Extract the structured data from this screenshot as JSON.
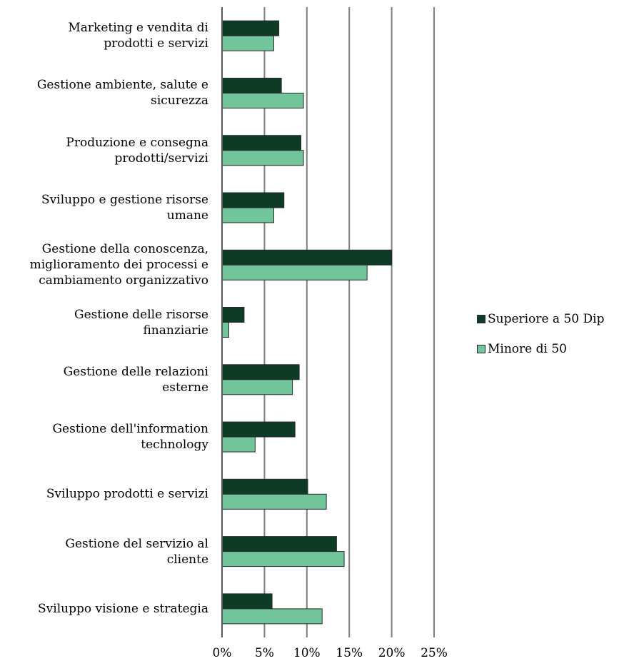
{
  "chart_data": {
    "type": "bar",
    "orientation": "horizontal",
    "categories": [
      "Marketing e vendita di\nprodotti e servizi",
      "Gestione ambiente, salute e\nsicurezza",
      "Produzione e consegna\nprodotti/servizi",
      "Sviluppo e gestione risorse\numane",
      "Gestione della conoscenza,\nmiglioramento dei processi e\ncambiamento organizzativo",
      "Gestione delle risorse\nfinanziarie",
      "Gestione delle relazioni\nesterne",
      "Gestione dell'information\ntechnology",
      "Sviluppo prodotti e servizi",
      "Gestione del servizio al\ncliente",
      "Sviluppo visione e strategia"
    ],
    "series": [
      {
        "name": "Superiore a 50 Dip",
        "color": "#0d3b26",
        "values": [
          6.7,
          7.0,
          9.3,
          7.3,
          20.0,
          2.6,
          9.1,
          8.6,
          10.1,
          13.5,
          5.9
        ]
      },
      {
        "name": "Minore di 50",
        "color": "#72c49a",
        "values": [
          6.1,
          9.6,
          9.6,
          6.1,
          17.1,
          0.8,
          8.3,
          3.9,
          12.3,
          14.4,
          11.8
        ]
      }
    ],
    "x_ticks": [
      "0%",
      "5%",
      "10%",
      "15%",
      "20%",
      "25%"
    ],
    "xlim": [
      0,
      25
    ],
    "grid": "vertical",
    "legend_position": "right",
    "title": "",
    "xlabel": "",
    "ylabel": ""
  }
}
